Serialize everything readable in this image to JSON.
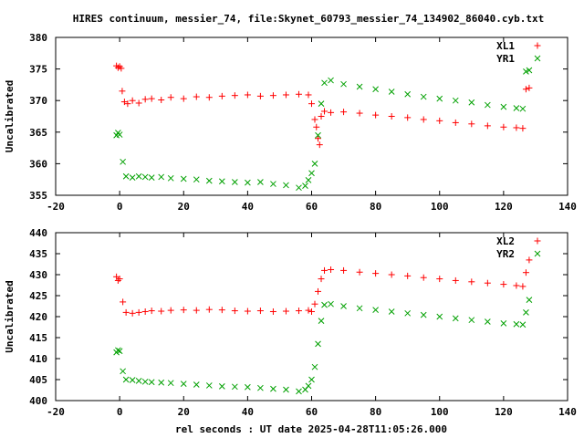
{
  "chart_data": [
    {
      "type": "scatter",
      "title": "HIRES continuum, messier_74, file:Skynet_60793_messier_74_134902_86040.cyb.txt",
      "ylabel": "Uncalibrated",
      "xlabel": "",
      "xlim": [
        -20,
        140
      ],
      "ylim": [
        355,
        380
      ],
      "xticks": [
        -20,
        0,
        20,
        40,
        60,
        80,
        100,
        120,
        140
      ],
      "yticks": [
        355,
        360,
        365,
        370,
        375,
        380
      ],
      "legend": "top-right",
      "series": [
        {
          "name": "XL1",
          "marker": "+",
          "color": "#ff0000",
          "points": [
            [
              -1,
              375.5
            ],
            [
              -0.5,
              375.2
            ],
            [
              0,
              375.4
            ],
            [
              0.5,
              375.1
            ],
            [
              0.8,
              371.5
            ],
            [
              1.5,
              369.8
            ],
            [
              2.5,
              369.5
            ],
            [
              4,
              370.0
            ],
            [
              6,
              369.6
            ],
            [
              8,
              370.2
            ],
            [
              10,
              370.3
            ],
            [
              13,
              370.1
            ],
            [
              16,
              370.5
            ],
            [
              20,
              370.3
            ],
            [
              24,
              370.6
            ],
            [
              28,
              370.5
            ],
            [
              32,
              370.7
            ],
            [
              36,
              370.8
            ],
            [
              40,
              370.9
            ],
            [
              44,
              370.7
            ],
            [
              48,
              370.8
            ],
            [
              52,
              370.9
            ],
            [
              56,
              371.0
            ],
            [
              59,
              370.9
            ],
            [
              60,
              369.5
            ],
            [
              61,
              367.0
            ],
            [
              61.5,
              365.8
            ],
            [
              62,
              364.0
            ],
            [
              62.5,
              363.0
            ],
            [
              63,
              367.5
            ],
            [
              64,
              368.3
            ],
            [
              66,
              368.1
            ],
            [
              70,
              368.2
            ],
            [
              75,
              368.0
            ],
            [
              80,
              367.7
            ],
            [
              85,
              367.5
            ],
            [
              90,
              367.3
            ],
            [
              95,
              367.0
            ],
            [
              100,
              366.8
            ],
            [
              105,
              366.5
            ],
            [
              110,
              366.3
            ],
            [
              115,
              366.0
            ],
            [
              120,
              365.8
            ],
            [
              124,
              365.7
            ],
            [
              126,
              365.6
            ],
            [
              127,
              371.8
            ],
            [
              128,
              372.0
            ]
          ]
        },
        {
          "name": "YR1",
          "marker": "x",
          "color": "#00a000",
          "points": [
            [
              -1,
              364.5
            ],
            [
              -0.5,
              364.9
            ],
            [
              0,
              364.6
            ],
            [
              1,
              360.3
            ],
            [
              2,
              358.0
            ],
            [
              4,
              357.8
            ],
            [
              6,
              358.0
            ],
            [
              8,
              357.9
            ],
            [
              10,
              357.8
            ],
            [
              13,
              357.9
            ],
            [
              16,
              357.7
            ],
            [
              20,
              357.6
            ],
            [
              24,
              357.5
            ],
            [
              28,
              357.3
            ],
            [
              32,
              357.2
            ],
            [
              36,
              357.1
            ],
            [
              40,
              357.0
            ],
            [
              44,
              357.1
            ],
            [
              48,
              356.8
            ],
            [
              52,
              356.6
            ],
            [
              56,
              356.2
            ],
            [
              58,
              356.5
            ],
            [
              59,
              357.4
            ],
            [
              60,
              358.5
            ],
            [
              61,
              360.0
            ],
            [
              62,
              364.5
            ],
            [
              63,
              369.5
            ],
            [
              64,
              372.8
            ],
            [
              66,
              373.2
            ],
            [
              70,
              372.6
            ],
            [
              75,
              372.2
            ],
            [
              80,
              371.8
            ],
            [
              85,
              371.4
            ],
            [
              90,
              371.0
            ],
            [
              95,
              370.6
            ],
            [
              100,
              370.3
            ],
            [
              105,
              370.0
            ],
            [
              110,
              369.7
            ],
            [
              115,
              369.3
            ],
            [
              120,
              369.0
            ],
            [
              124,
              368.8
            ],
            [
              126,
              368.7
            ],
            [
              127,
              374.6
            ],
            [
              128,
              374.8
            ]
          ]
        }
      ]
    },
    {
      "type": "scatter",
      "title": "",
      "ylabel": "Uncalibrated",
      "xlabel": "rel seconds : UT date 2025-04-28T11:05:26.000",
      "xlim": [
        -20,
        140
      ],
      "ylim": [
        400,
        440
      ],
      "xticks": [
        -20,
        0,
        20,
        40,
        60,
        80,
        100,
        120,
        140
      ],
      "yticks": [
        400,
        405,
        410,
        415,
        420,
        425,
        430,
        435,
        440
      ],
      "legend": "top-right",
      "series": [
        {
          "name": "XL2",
          "marker": "+",
          "color": "#ff0000",
          "points": [
            [
              -1,
              429.5
            ],
            [
              -0.5,
              428.6
            ],
            [
              0,
              429.0
            ],
            [
              1,
              423.5
            ],
            [
              2,
              421.0
            ],
            [
              4,
              420.8
            ],
            [
              6,
              421.0
            ],
            [
              8,
              421.2
            ],
            [
              10,
              421.4
            ],
            [
              13,
              421.3
            ],
            [
              16,
              421.5
            ],
            [
              20,
              421.6
            ],
            [
              24,
              421.5
            ],
            [
              28,
              421.7
            ],
            [
              32,
              421.6
            ],
            [
              36,
              421.4
            ],
            [
              40,
              421.3
            ],
            [
              44,
              421.4
            ],
            [
              48,
              421.2
            ],
            [
              52,
              421.3
            ],
            [
              56,
              421.4
            ],
            [
              59,
              421.5
            ],
            [
              60,
              421.2
            ],
            [
              61,
              423.0
            ],
            [
              62,
              426.0
            ],
            [
              63,
              429.0
            ],
            [
              64,
              431.0
            ],
            [
              66,
              431.2
            ],
            [
              70,
              431.0
            ],
            [
              75,
              430.6
            ],
            [
              80,
              430.3
            ],
            [
              85,
              430.0
            ],
            [
              90,
              429.7
            ],
            [
              95,
              429.3
            ],
            [
              100,
              429.0
            ],
            [
              105,
              428.6
            ],
            [
              110,
              428.3
            ],
            [
              115,
              428.0
            ],
            [
              120,
              427.7
            ],
            [
              124,
              427.4
            ],
            [
              126,
              427.2
            ],
            [
              127,
              430.5
            ],
            [
              128,
              433.5
            ]
          ]
        },
        {
          "name": "YR2",
          "marker": "x",
          "color": "#00a000",
          "points": [
            [
              -1,
              411.5
            ],
            [
              -0.5,
              412.0
            ],
            [
              0,
              411.8
            ],
            [
              1,
              407.0
            ],
            [
              2,
              405.0
            ],
            [
              4,
              404.9
            ],
            [
              6,
              404.7
            ],
            [
              8,
              404.5
            ],
            [
              10,
              404.4
            ],
            [
              13,
              404.3
            ],
            [
              16,
              404.2
            ],
            [
              20,
              404.0
            ],
            [
              24,
              403.8
            ],
            [
              28,
              403.6
            ],
            [
              32,
              403.4
            ],
            [
              36,
              403.3
            ],
            [
              40,
              403.2
            ],
            [
              44,
              403.0
            ],
            [
              48,
              402.8
            ],
            [
              52,
              402.6
            ],
            [
              56,
              402.2
            ],
            [
              58,
              402.6
            ],
            [
              59,
              403.5
            ],
            [
              60,
              405.0
            ],
            [
              61,
              408.0
            ],
            [
              62,
              413.5
            ],
            [
              63,
              419.0
            ],
            [
              64,
              422.8
            ],
            [
              66,
              423.0
            ],
            [
              70,
              422.5
            ],
            [
              75,
              422.0
            ],
            [
              80,
              421.6
            ],
            [
              85,
              421.2
            ],
            [
              90,
              420.8
            ],
            [
              95,
              420.4
            ],
            [
              100,
              420.0
            ],
            [
              105,
              419.6
            ],
            [
              110,
              419.2
            ],
            [
              115,
              418.8
            ],
            [
              120,
              418.4
            ],
            [
              124,
              418.2
            ],
            [
              126,
              418.1
            ],
            [
              127,
              421.0
            ],
            [
              128,
              424.0
            ]
          ]
        }
      ]
    }
  ]
}
